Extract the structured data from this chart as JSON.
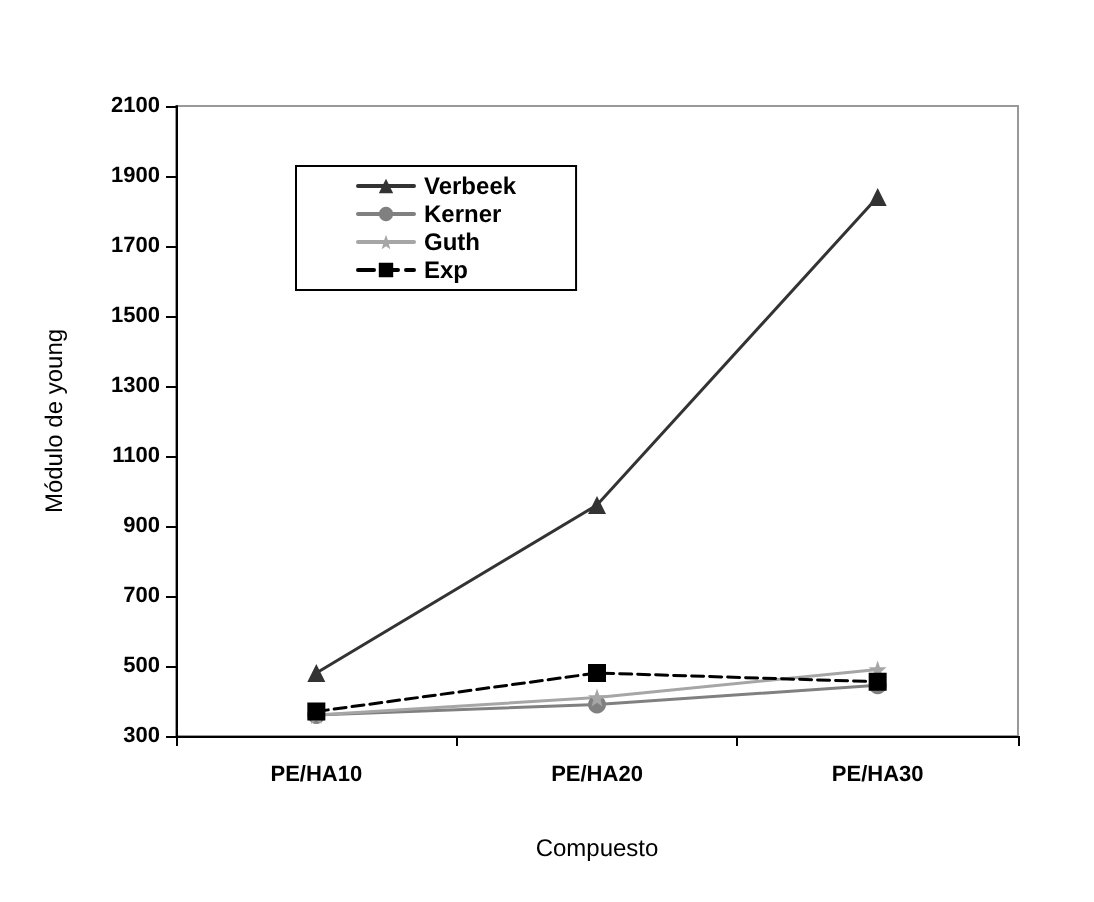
{
  "chart_data": {
    "type": "line",
    "xlabel": "Compuesto",
    "ylabel": "Módulo de young",
    "categories": [
      "PE/HA10",
      "PE/HA20",
      "PE/HA30"
    ],
    "series": [
      {
        "name": "Verbeek",
        "color": "#333333",
        "marker": "triangle",
        "line_style": "solid",
        "values": [
          480,
          960,
          1840
        ]
      },
      {
        "name": "Kerner",
        "color": "#808080",
        "marker": "circle",
        "line_style": "solid",
        "values": [
          360,
          390,
          445
        ]
      },
      {
        "name": "Guth",
        "color": "#a6a6a6",
        "marker": "star",
        "line_style": "solid",
        "values": [
          360,
          410,
          490
        ]
      },
      {
        "name": "Exp",
        "color": "#000000",
        "marker": "square",
        "line_style": "dashed",
        "values": [
          370,
          480,
          455
        ]
      }
    ],
    "ylim": [
      300,
      2100
    ],
    "yticks": [
      300,
      500,
      700,
      900,
      1100,
      1300,
      1500,
      1700,
      1900,
      2100
    ],
    "grid": false,
    "legend": "top left"
  }
}
